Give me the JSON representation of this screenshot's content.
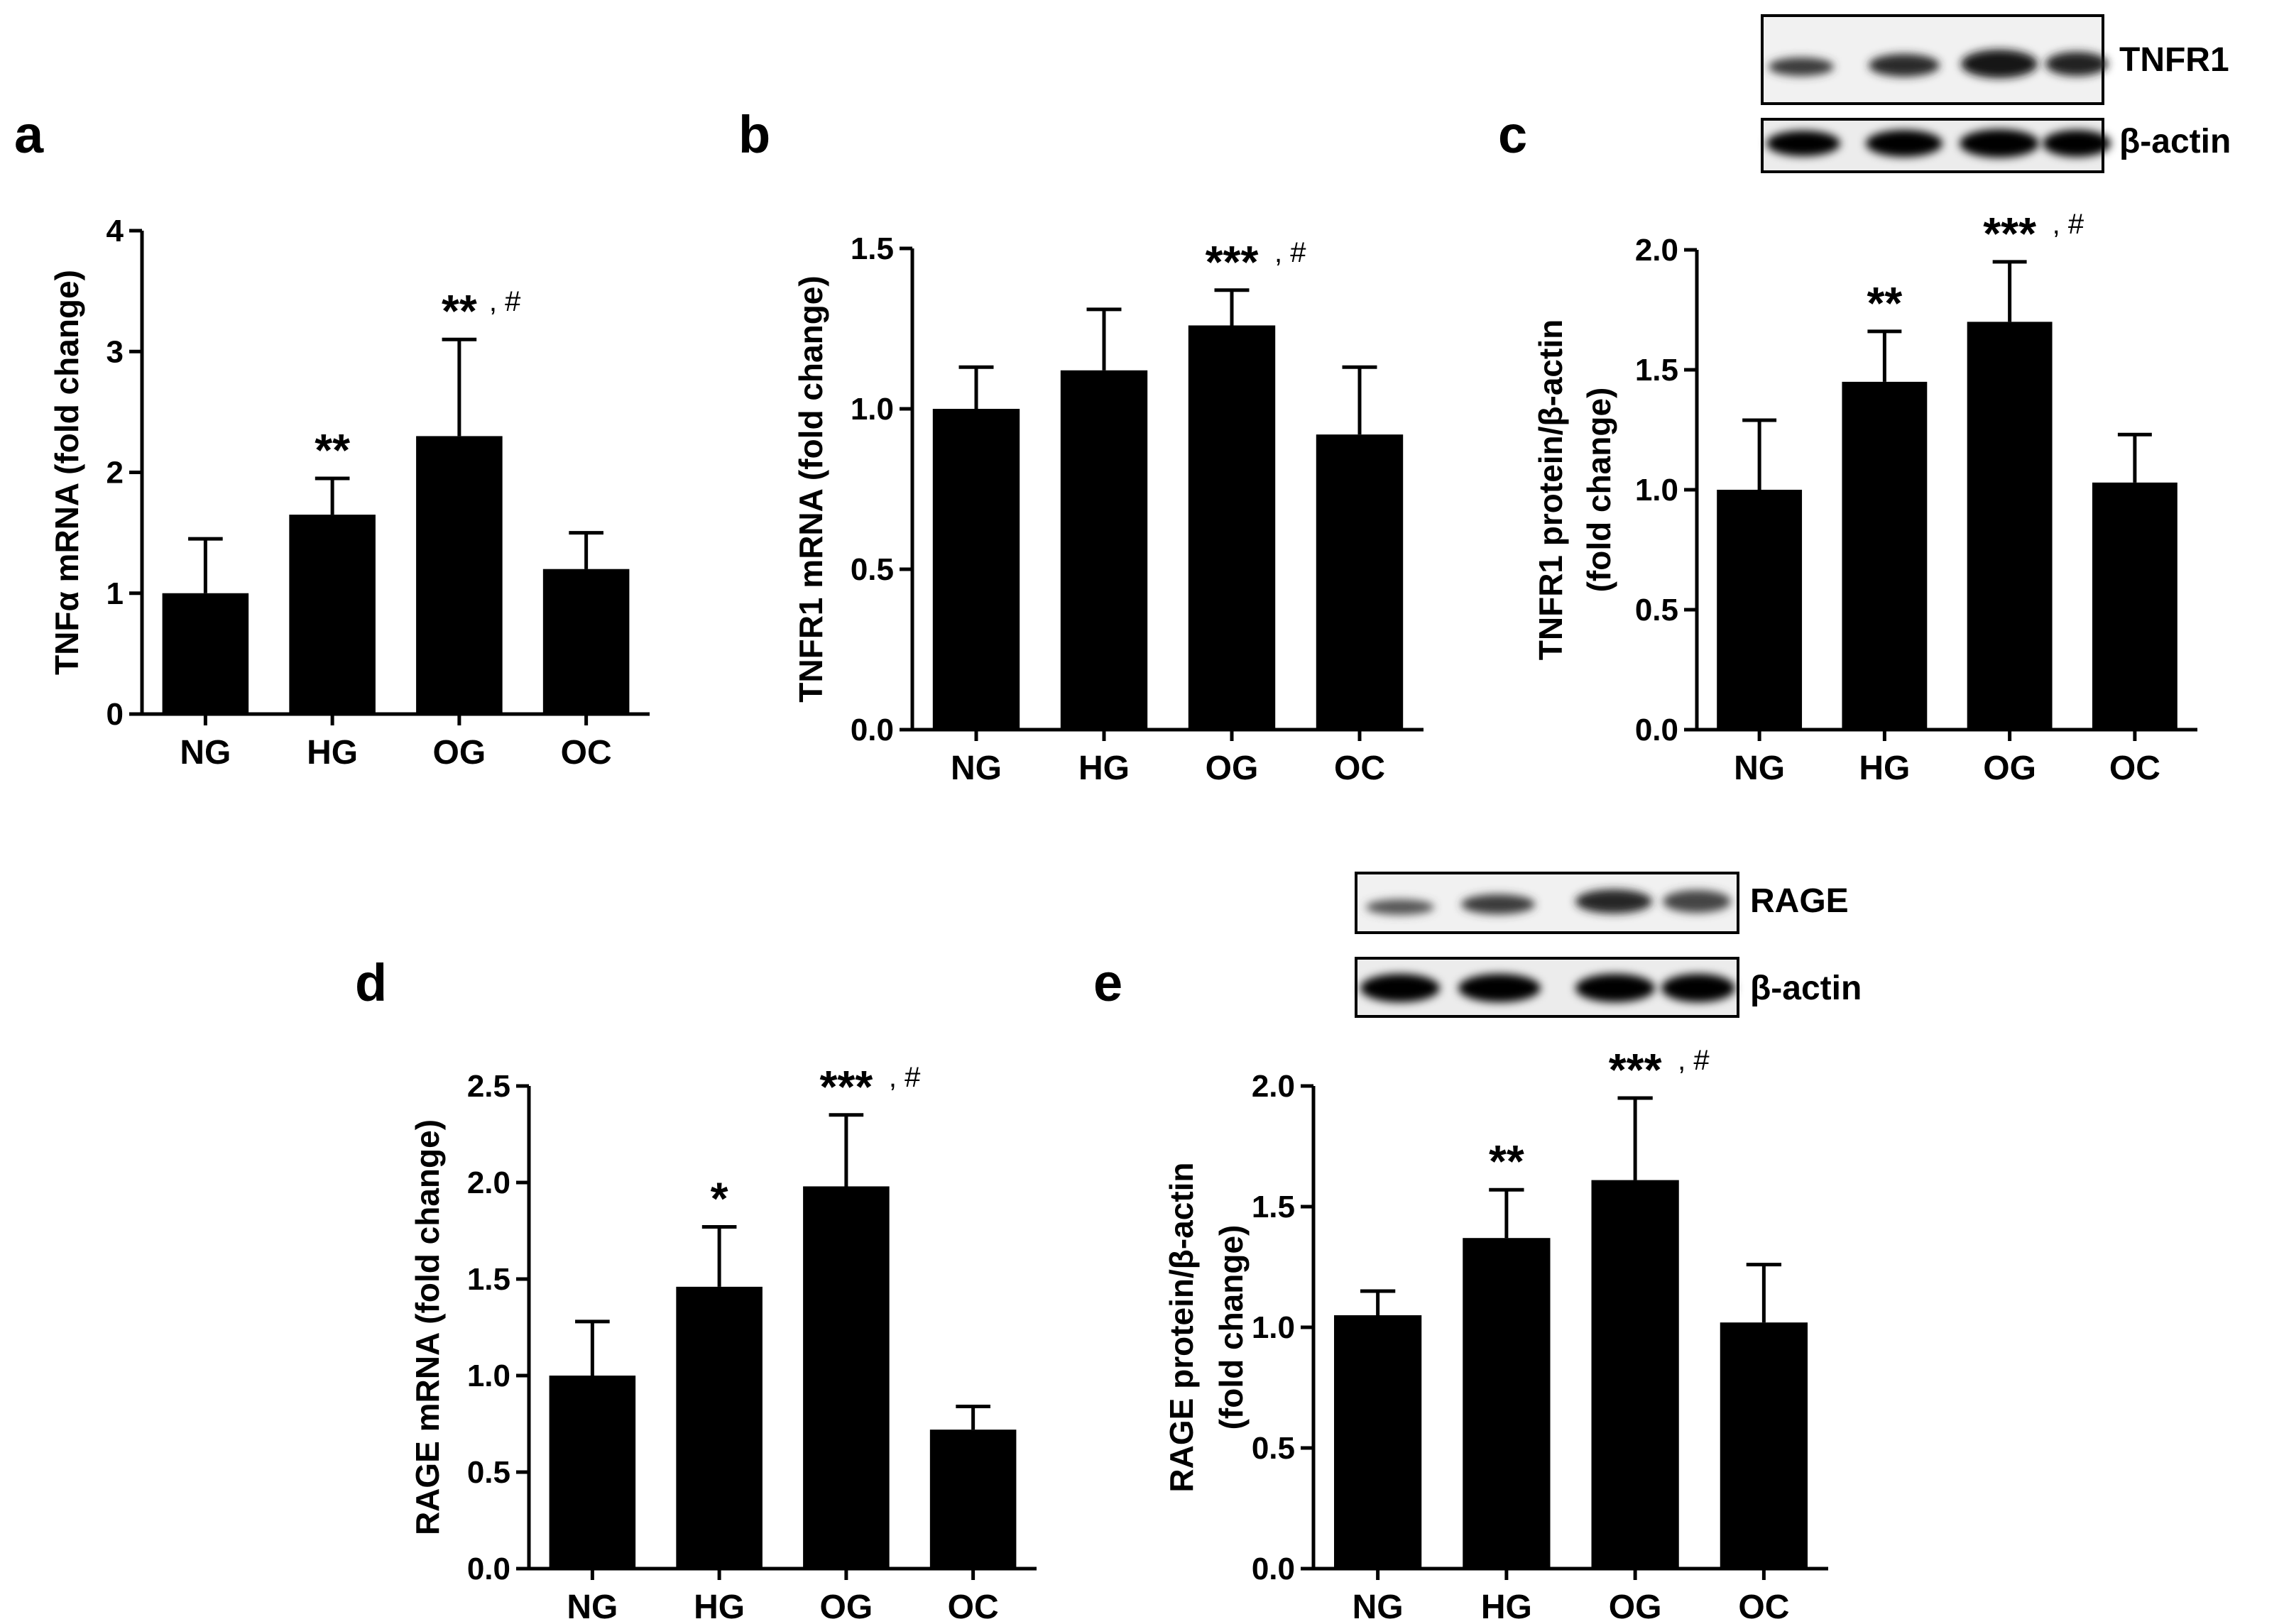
{
  "figure": {
    "categories": [
      "NG",
      "HG",
      "OG",
      "OC"
    ],
    "bar_color": "#000000"
  },
  "chart_data": [
    {
      "panel": "a",
      "type": "bar",
      "categories": [
        "NG",
        "HG",
        "OG",
        "OC"
      ],
      "values": [
        1.0,
        1.65,
        2.3,
        1.2
      ],
      "errors": [
        0.45,
        0.3,
        0.8,
        0.3
      ],
      "annotations": [
        "",
        "**",
        "**",
        ""
      ],
      "hash": [
        false,
        false,
        true,
        false
      ],
      "ylabel": "TNFα mRNA (fold change)",
      "ylim": [
        0,
        4
      ],
      "yticks": [
        0,
        1,
        2,
        3,
        4
      ],
      "ytick_labels": [
        "0",
        "1",
        "2",
        "3",
        "4"
      ]
    },
    {
      "panel": "b",
      "type": "bar",
      "categories": [
        "NG",
        "HG",
        "OG",
        "OC"
      ],
      "values": [
        1.0,
        1.12,
        1.26,
        0.92
      ],
      "errors": [
        0.13,
        0.19,
        0.11,
        0.21
      ],
      "annotations": [
        "",
        "",
        "***",
        ""
      ],
      "hash": [
        false,
        false,
        true,
        false
      ],
      "ylabel": "TNFR1 mRNA (fold change)",
      "ylim": [
        0,
        1.5
      ],
      "yticks": [
        0,
        0.5,
        1.0,
        1.5
      ],
      "ytick_labels": [
        "0.0",
        "0.5",
        "1.0",
        "1.5"
      ]
    },
    {
      "panel": "c",
      "type": "bar",
      "categories": [
        "NG",
        "HG",
        "OG",
        "OC"
      ],
      "values": [
        1.0,
        1.45,
        1.7,
        1.03
      ],
      "errors": [
        0.29,
        0.21,
        0.25,
        0.2
      ],
      "annotations": [
        "",
        "**",
        "***",
        ""
      ],
      "hash": [
        false,
        false,
        true,
        false
      ],
      "ylabel": "TNFR1 protein/β-actin",
      "ylabel2": "(fold change)",
      "ylim": [
        0,
        2.0
      ],
      "yticks": [
        0,
        0.5,
        1.0,
        1.5,
        2.0
      ],
      "ytick_labels": [
        "0.0",
        "0.5",
        "1.0",
        "1.5",
        "2.0"
      ],
      "blot_labels": [
        "TNFR1",
        "β-actin"
      ]
    },
    {
      "panel": "d",
      "type": "bar",
      "categories": [
        "NG",
        "HG",
        "OG",
        "OC"
      ],
      "values": [
        1.0,
        1.46,
        1.98,
        0.72
      ],
      "errors": [
        0.28,
        0.31,
        0.37,
        0.12
      ],
      "annotations": [
        "",
        "*",
        "***",
        ""
      ],
      "hash": [
        false,
        false,
        true,
        false
      ],
      "ylabel": "RAGE mRNA (fold change)",
      "ylim": [
        0,
        2.5
      ],
      "yticks": [
        0,
        0.5,
        1.0,
        1.5,
        2.0,
        2.5
      ],
      "ytick_labels": [
        "0.0",
        "0.5",
        "1.0",
        "1.5",
        "2.0",
        "2.5"
      ]
    },
    {
      "panel": "e",
      "type": "bar",
      "categories": [
        "NG",
        "HG",
        "OG",
        "OC"
      ],
      "values": [
        1.05,
        1.37,
        1.61,
        1.02
      ],
      "errors": [
        0.1,
        0.2,
        0.34,
        0.24
      ],
      "annotations": [
        "",
        "**",
        "***",
        ""
      ],
      "hash": [
        false,
        false,
        true,
        false
      ],
      "ylabel": "RAGE protein/β-actin",
      "ylabel2": "(fold change)",
      "ylim": [
        0,
        2.0
      ],
      "yticks": [
        0,
        0.5,
        1.0,
        1.5,
        2.0
      ],
      "ytick_labels": [
        "0.0",
        "0.5",
        "1.0",
        "1.5",
        "2.0"
      ],
      "blot_labels": [
        "RAGE",
        "β-actin"
      ]
    }
  ]
}
